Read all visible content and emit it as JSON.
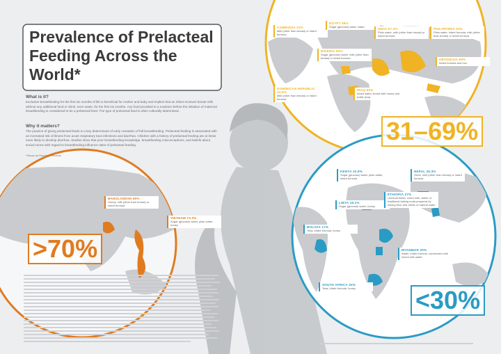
{
  "title": "Prevalence of Prelacteal Feeding Across the World*",
  "sections": [
    {
      "heading": "What is it?",
      "text": "Exclusive breastfeeding for the first six months of life is beneficial for mother and baby and implies that an infant receives breast milk without any additional food or drink, even water, for the first six months. Any food provided to a newborn before the initiation of maternal breastfeeding is considered to be a prelacteal feed. The type of prelacteal feed is often culturally determined."
    },
    {
      "heading": "Why it matters?",
      "text": "The practice of giving prelacteal feeds is a key determinant of early cessation of full breastfeeding. Prelacteal feeding is associated with an increased risk of illness from acute respiratory tract infections and diarrhea. Children with a history of prelacteal feeding are at times more likely to develop diarrhea. Studies show that poor breastfeeding knowledge, breastfeeding misconceptions, and beliefs about social norms with regard to breastfeeding influence rates of prelacteal feeding."
    }
  ],
  "footnote": "*Shown as Rounded Percents",
  "groups": [
    {
      "label": "31–69%",
      "countries": [
        {
          "name": "CAMBODIA 31%",
          "feeds": "Milk (other than breast) or infant formula"
        },
        {
          "name": "EGYPT 59%",
          "feeds": "Sugar (glucose) water, water"
        },
        {
          "name": "INDIA 57.2%",
          "feeds": "Plain water, milk (other than breast) or infant formula"
        },
        {
          "name": "PHILIPPINES 53%",
          "feeds": "Plain water, infant formula, milk (other than breast) or infant formula"
        },
        {
          "name": "NIGERIA 50%",
          "feeds": "Sugar (glucose) water, milk (other than breast) or infant formula"
        },
        {
          "name": "INDONESIA 50%",
          "feeds": "Infant formula and rice"
        },
        {
          "name": "DOMINICAN REPUBLIC 33.5%",
          "feeds": "Milk (other than breast) or infant formula"
        },
        {
          "name": "IRAQ 60%",
          "feeds": "Infant water, bread with honey and bottle (tea)"
        }
      ]
    },
    {
      "label": ">70%",
      "countries": [
        {
          "name": "BANGLADESH 90%",
          "feeds": "Honey, milk (other than breast) or infant formula"
        },
        {
          "name": "VIETNAM 73.3%",
          "feeds": "Sugar (glucose) water, plain water, honey"
        }
      ]
    },
    {
      "label": "<30%",
      "countries": [
        {
          "name": "KENYA 20.8%",
          "feeds": "Sugar (glucose) water, plain water, infant formula"
        },
        {
          "name": "NEPAL 26.3%",
          "feeds": "Ghee, milk (other than breast) or infant formula"
        },
        {
          "name": "LIBYA 18.1%",
          "feeds": "Sugar (glucose) water, honey"
        },
        {
          "name": "ETHIOPIA 27%",
          "feeds": "Unusual butter, cow's milk, water, or traditional baking soda prepared by mixing flour and drinks of natural water"
        },
        {
          "name": "BOLIVIA 17%",
          "feeds": "Teas, infant formula, honey"
        },
        {
          "name": "MYANMAR 20%",
          "feeds": "Water, infant formula, condensed milk mixed with water"
        },
        {
          "name": "SOUTH AFRICA 20%",
          "feeds": "Teas, infant formula, honey"
        }
      ]
    }
  ]
}
